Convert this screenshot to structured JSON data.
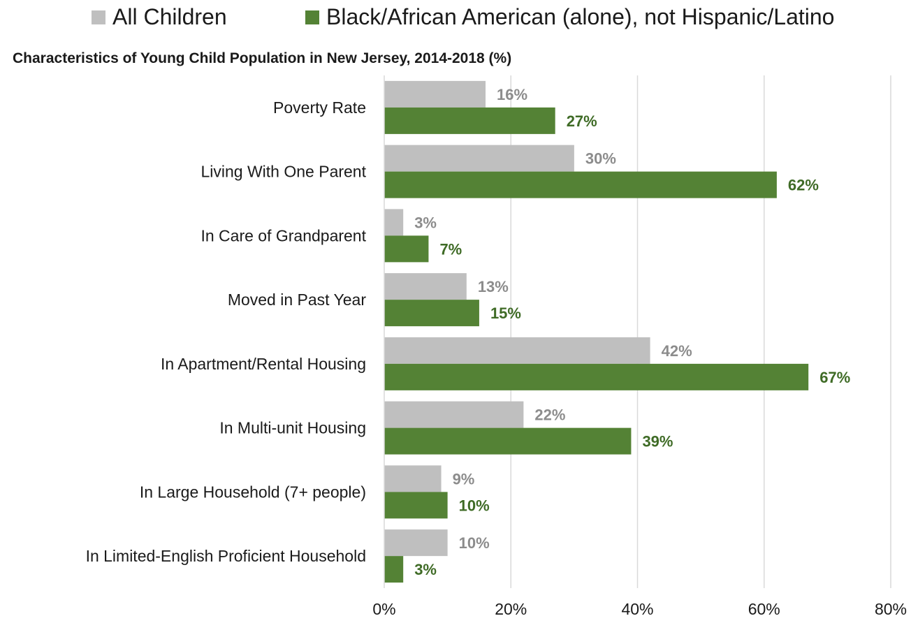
{
  "chart_data": {
    "type": "bar",
    "orientation": "horizontal",
    "title": "Characteristics of Young Child Population in New Jersey, 2014-2018 (%)",
    "categories": [
      "Poverty Rate",
      "Living With One Parent",
      "In Care of Grandparent",
      "Moved in Past Year",
      "In Apartment/Rental Housing",
      "In Multi-unit Housing",
      "In Large Household (7+ people)",
      "In Limited-English Proficient Household"
    ],
    "series": [
      {
        "name": "All Children",
        "color": "#bfbfbf",
        "label_color": "#8c8c8c",
        "values": [
          16,
          30,
          3,
          13,
          42,
          22,
          9,
          10
        ],
        "labels": [
          "16%",
          "30%",
          "3%",
          "13%",
          "42%",
          "22%",
          "9%",
          "10%"
        ]
      },
      {
        "name": "Black/African American (alone), not Hispanic/Latino",
        "color": "#548235",
        "label_color": "#3f6b26",
        "values": [
          27,
          62,
          7,
          15,
          67,
          39,
          10,
          3
        ],
        "labels": [
          "27%",
          "62%",
          "7%",
          "15%",
          "67%",
          "39%",
          "10%",
          "3%"
        ]
      }
    ],
    "xlim": [
      0,
      80
    ],
    "xticks": [
      0,
      20,
      40,
      60,
      80
    ],
    "xtick_labels": [
      "0%",
      "20%",
      "40%",
      "60%",
      "80%"
    ],
    "grid": true,
    "legend_position": "top"
  }
}
